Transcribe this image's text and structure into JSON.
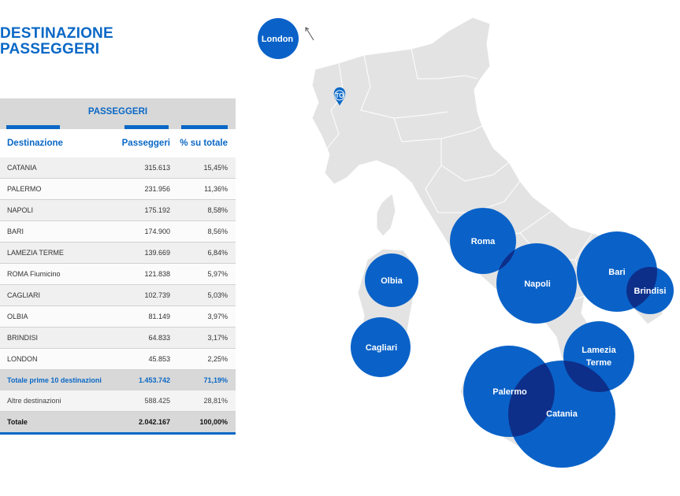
{
  "title": {
    "line1": "DESTINAZIONE",
    "line2": "PASSEGGERI"
  },
  "table": {
    "group_header": "PASSEGGERI",
    "columns": {
      "destination": "Destinazione",
      "passengers": "Passeggeri",
      "percent": "% su totale"
    },
    "rows": [
      {
        "destination": "CATANIA",
        "passengers": "315.613",
        "percent": "15,45%"
      },
      {
        "destination": "PALERMO",
        "passengers": "231.956",
        "percent": "11,36%"
      },
      {
        "destination": "NAPOLI",
        "passengers": "175.192",
        "percent": "8,58%"
      },
      {
        "destination": "BARI",
        "passengers": "174.900",
        "percent": "8,56%"
      },
      {
        "destination": "LAMEZIA TERME",
        "passengers": "139.669",
        "percent": "6,84%"
      },
      {
        "destination": "ROMA Fiumicino",
        "passengers": "121.838",
        "percent": "5,97%"
      },
      {
        "destination": "CAGLIARI",
        "passengers": "102.739",
        "percent": "5,03%"
      },
      {
        "destination": "OLBIA",
        "passengers": "81.149",
        "percent": "3,97%"
      },
      {
        "destination": "BRINDISI",
        "passengers": "64.833",
        "percent": "3,17%"
      },
      {
        "destination": "LONDON",
        "passengers": "45.853",
        "percent": "2,25%"
      }
    ],
    "top10": {
      "label": "Totale prime 10 destinazioni",
      "passengers": "1.453.742",
      "percent": "71,19%"
    },
    "other": {
      "label": "Altre destinazioni",
      "passengers": "588.425",
      "percent": "28,81%"
    },
    "total": {
      "label": "Totale",
      "passengers": "2.042.167",
      "percent": "100,00%"
    }
  },
  "map": {
    "origin_marker": "TO",
    "bubbles": [
      {
        "name": "London",
        "line1": "London",
        "line2": ""
      },
      {
        "name": "Roma",
        "line1": "Roma",
        "line2": ""
      },
      {
        "name": "Napoli",
        "line1": "Napoli",
        "line2": ""
      },
      {
        "name": "Bari",
        "line1": "Bari",
        "line2": ""
      },
      {
        "name": "Brindisi",
        "line1": "Brindisi",
        "line2": ""
      },
      {
        "name": "Olbia",
        "line1": "Olbia",
        "line2": ""
      },
      {
        "name": "Cagliari",
        "line1": "Cagliari",
        "line2": ""
      },
      {
        "name": "Lamezia Terme",
        "line1": "Lamezia",
        "line2": "Terme"
      },
      {
        "name": "Palermo",
        "line1": "Palermo",
        "line2": ""
      },
      {
        "name": "Catania",
        "line1": "Catania",
        "line2": ""
      }
    ]
  },
  "colors": {
    "accent": "#0a68c6",
    "bubble": "#0a62c8",
    "overlap": "#0d2f8a",
    "land": "#e3e3e3"
  }
}
